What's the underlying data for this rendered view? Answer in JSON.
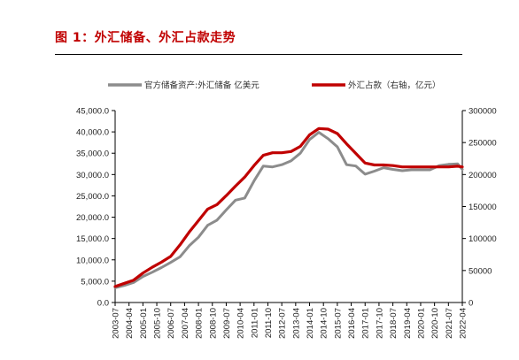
{
  "figure_title": "图 1：外汇储备、外汇占款走势",
  "chart_data": {
    "type": "line",
    "title": "",
    "xlabel": "",
    "ylabel": "",
    "y2label": "",
    "ylim": [
      0,
      45000
    ],
    "y2lim": [
      0,
      300000
    ],
    "grid": false,
    "legend_position": "top",
    "y_ticks": [
      "0.0",
      "5,000.0",
      "10,000.0",
      "15,000.0",
      "20,000.0",
      "25,000.0",
      "30,000.0",
      "35,000.0",
      "40,000.0",
      "45,000.0"
    ],
    "y2_ticks": [
      "0",
      "50000",
      "100000",
      "150000",
      "200000",
      "250000",
      "300000"
    ],
    "x_ticks": [
      "2003-07",
      "2004-04",
      "2005-01",
      "2005-10",
      "2006-07",
      "2007-04",
      "2008-01",
      "2008-10",
      "2009-07",
      "2010-04",
      "2011-01",
      "2011-10",
      "2012-07",
      "2013-04",
      "2014-01",
      "2014-10",
      "2015-07",
      "2016-04",
      "2017-01",
      "2017-10",
      "2018-07",
      "2019-04",
      "2020-01",
      "2020-10",
      "2021-07",
      "2022-04"
    ],
    "x": [
      "2003-07",
      "2004-01",
      "2004-07",
      "2005-01",
      "2005-07",
      "2006-01",
      "2006-07",
      "2007-01",
      "2007-07",
      "2008-01",
      "2008-07",
      "2009-01",
      "2009-07",
      "2010-01",
      "2010-07",
      "2011-01",
      "2011-07",
      "2012-01",
      "2012-07",
      "2013-01",
      "2013-07",
      "2014-01",
      "2014-07",
      "2015-01",
      "2015-07",
      "2016-01",
      "2016-07",
      "2017-01",
      "2017-07",
      "2018-01",
      "2018-07",
      "2019-01",
      "2019-07",
      "2020-01",
      "2020-07",
      "2021-01",
      "2021-07",
      "2022-01",
      "2022-04"
    ],
    "series": [
      {
        "name": "官方储备资产:外汇储备 亿美元",
        "axis": "left",
        "color": "#8c8c8c",
        "values": [
          3470,
          4000,
          4700,
          6100,
          7100,
          8200,
          9400,
          10700,
          13300,
          15300,
          18100,
          19300,
          21700,
          24000,
          24500,
          28500,
          32000,
          31800,
          32300,
          33200,
          35000,
          38200,
          39900,
          38400,
          36500,
          32300,
          32000,
          30100,
          30800,
          31600,
          31200,
          30900,
          31100,
          31100,
          31100,
          32100,
          32400,
          32500,
          31200
        ]
      },
      {
        "name": "外汇占款（右轴，亿元）",
        "axis": "right",
        "color": "#c00000",
        "values": [
          25000,
          30000,
          35000,
          46000,
          55000,
          63000,
          72000,
          90000,
          110000,
          128000,
          146000,
          153000,
          167000,
          182000,
          196000,
          214000,
          230000,
          234000,
          234000,
          236000,
          244000,
          262000,
          272000,
          271000,
          264000,
          248000,
          233000,
          218000,
          215000,
          215000,
          214000,
          212000,
          212000,
          212000,
          212000,
          212000,
          212000,
          213000,
          212000
        ]
      }
    ]
  }
}
